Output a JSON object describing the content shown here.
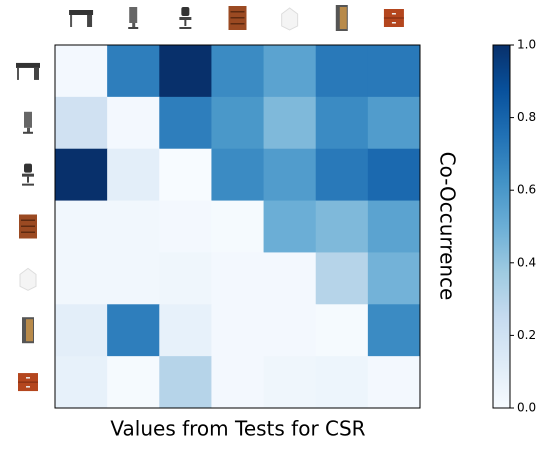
{
  "chart_data": {
    "type": "heatmap",
    "xlabel": "Values from Tests for CSR",
    "colorbar_label": "Co-Occurrence",
    "values": [
      [
        0.02,
        0.7,
        1.0,
        0.65,
        0.55,
        0.72,
        0.72
      ],
      [
        0.2,
        0.02,
        0.7,
        0.6,
        0.45,
        0.65,
        0.58
      ],
      [
        1.0,
        0.1,
        0.0,
        0.65,
        0.58,
        0.72,
        0.78
      ],
      [
        0.03,
        0.03,
        0.02,
        0.01,
        0.5,
        0.45,
        0.55
      ],
      [
        0.03,
        0.03,
        0.04,
        0.02,
        0.02,
        0.3,
        0.48
      ],
      [
        0.1,
        0.7,
        0.08,
        0.02,
        0.02,
        0.01,
        0.65
      ],
      [
        0.08,
        0.01,
        0.3,
        0.02,
        0.04,
        0.05,
        0.02
      ]
    ],
    "clim": [
      0,
      1
    ],
    "cticks": [
      {
        "value": 0,
        "label": "0.0"
      },
      0.2,
      0.4,
      0.6,
      0.8,
      {
        "value": 1,
        "label": "1.0"
      }
    ],
    "colormap": [
      "#f7fbff",
      "#deebf7",
      "#c6dbef",
      "#9ecae1",
      "#6baed6",
      "#4292c6",
      "#2171b5",
      "#08519c",
      "#08306b"
    ]
  }
}
